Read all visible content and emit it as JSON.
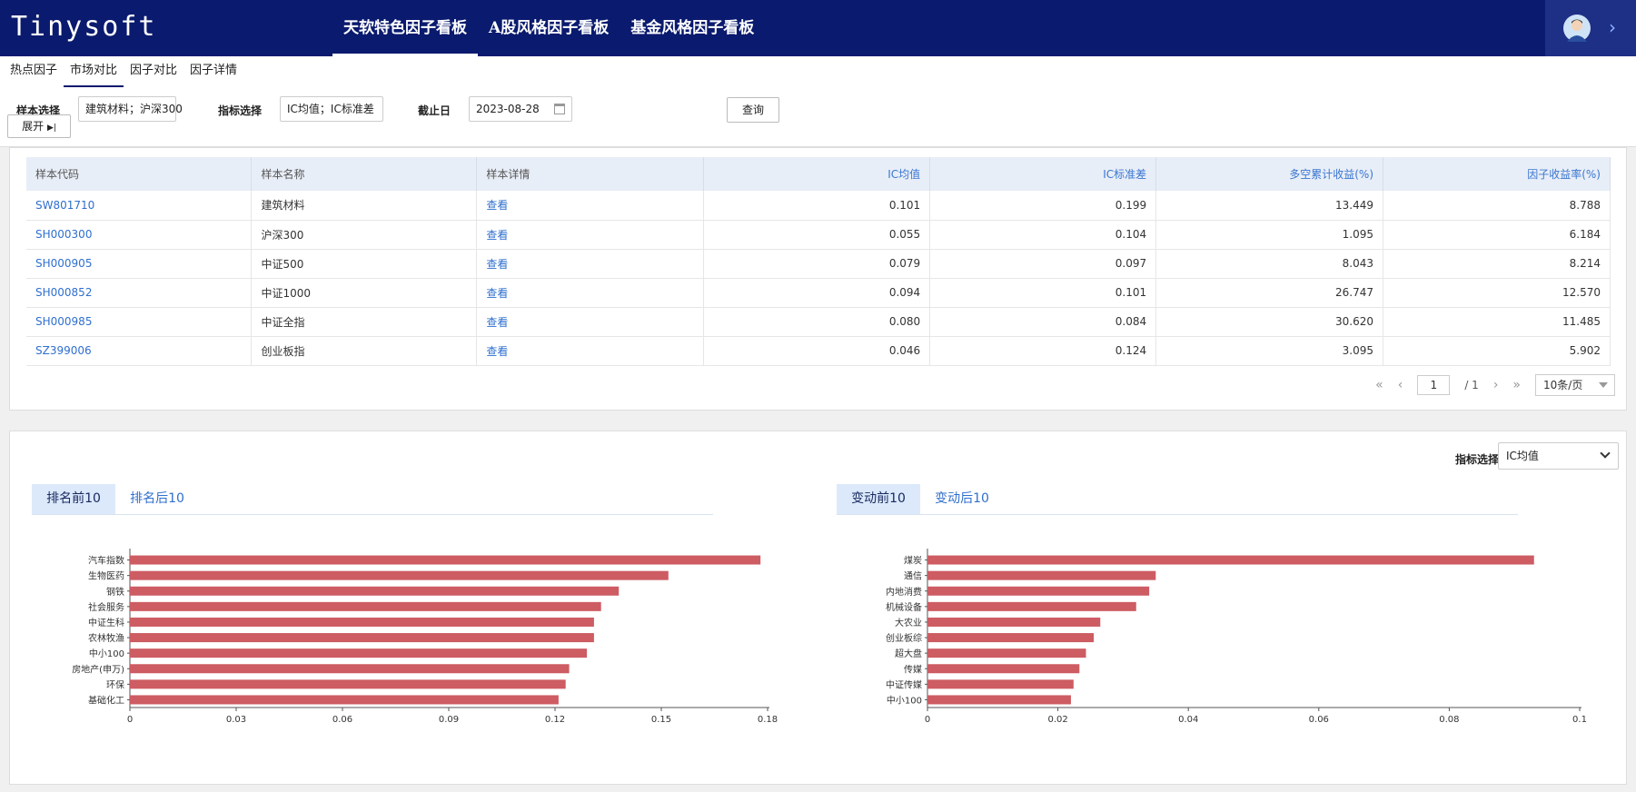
{
  "header": {
    "logo": "Tinysoft",
    "nav": [
      "天软特色因子看板",
      "A股风格因子看板",
      "基金风格因子看板"
    ],
    "active_nav": 0
  },
  "subnav": {
    "items": [
      "热点因子",
      "市场对比",
      "因子对比",
      "因子详情"
    ],
    "active": 1
  },
  "filters": {
    "sample_label": "样本选择",
    "sample_value": "建筑材料；沪深300",
    "expand_label": "展开",
    "indicator_label": "指标选择",
    "indicator_value": "IC均值；IC标准差",
    "date_label": "截止日",
    "date_value": "2023-08-28",
    "query_label": "查询"
  },
  "table": {
    "columns": [
      "样本代码",
      "样本名称",
      "样本详情",
      "IC均值",
      "IC标准差",
      "多空累计收益(%)",
      "因子收益率(%)"
    ],
    "rows": [
      [
        "SW801710",
        "建筑材料",
        "查看",
        "0.101",
        "0.199",
        "13.449",
        "8.788"
      ],
      [
        "SH000300",
        "沪深300",
        "查看",
        "0.055",
        "0.104",
        "1.095",
        "6.184"
      ],
      [
        "SH000905",
        "中证500",
        "查看",
        "0.079",
        "0.097",
        "8.043",
        "8.214"
      ],
      [
        "SH000852",
        "中证1000",
        "查看",
        "0.094",
        "0.101",
        "26.747",
        "12.570"
      ],
      [
        "SH000985",
        "中证全指",
        "查看",
        "0.080",
        "0.084",
        "30.620",
        "11.485"
      ],
      [
        "SZ399006",
        "创业板指",
        "查看",
        "0.046",
        "0.124",
        "3.095",
        "5.902"
      ]
    ]
  },
  "pager": {
    "page": "1",
    "total": "/ 1",
    "page_size": "10条/页"
  },
  "chart_panel": {
    "select_label": "指标选择",
    "select_value": "IC均值",
    "left_tabs": [
      "排名前10",
      "排名后10"
    ],
    "right_tabs": [
      "变动前10",
      "变动后10"
    ]
  },
  "colors": {
    "header_bg": "#0a1a6e",
    "bar": "#cd5c63",
    "link": "#2f6fce"
  },
  "chart_data": [
    {
      "type": "bar",
      "orientation": "horizontal",
      "categories": [
        "汽车指数",
        "生物医药",
        "钢铁",
        "社会服务",
        "中证生科",
        "农林牧渔",
        "中小100",
        "房地产(申万)",
        "环保",
        "基础化工"
      ],
      "values": [
        0.178,
        0.152,
        0.138,
        0.133,
        0.131,
        0.131,
        0.129,
        0.124,
        0.123,
        0.121
      ],
      "xlim": [
        0,
        0.18
      ],
      "xticks": [
        "0",
        "0.03",
        "0.06",
        "0.09",
        "0.12",
        "0.15",
        "0.18"
      ],
      "grid": false
    },
    {
      "type": "bar",
      "orientation": "horizontal",
      "categories": [
        "煤炭",
        "通信",
        "内地消费",
        "机械设备",
        "大农业",
        "创业板综",
        "超大盘",
        "传媒",
        "中证传媒",
        "中小100"
      ],
      "values": [
        0.093,
        0.035,
        0.034,
        0.032,
        0.0265,
        0.0255,
        0.0243,
        0.0233,
        0.0224,
        0.022
      ],
      "xlim": [
        0,
        0.1
      ],
      "xticks": [
        "0",
        "0.02",
        "0.04",
        "0.06",
        "0.08",
        "0.1"
      ],
      "grid": false
    }
  ]
}
